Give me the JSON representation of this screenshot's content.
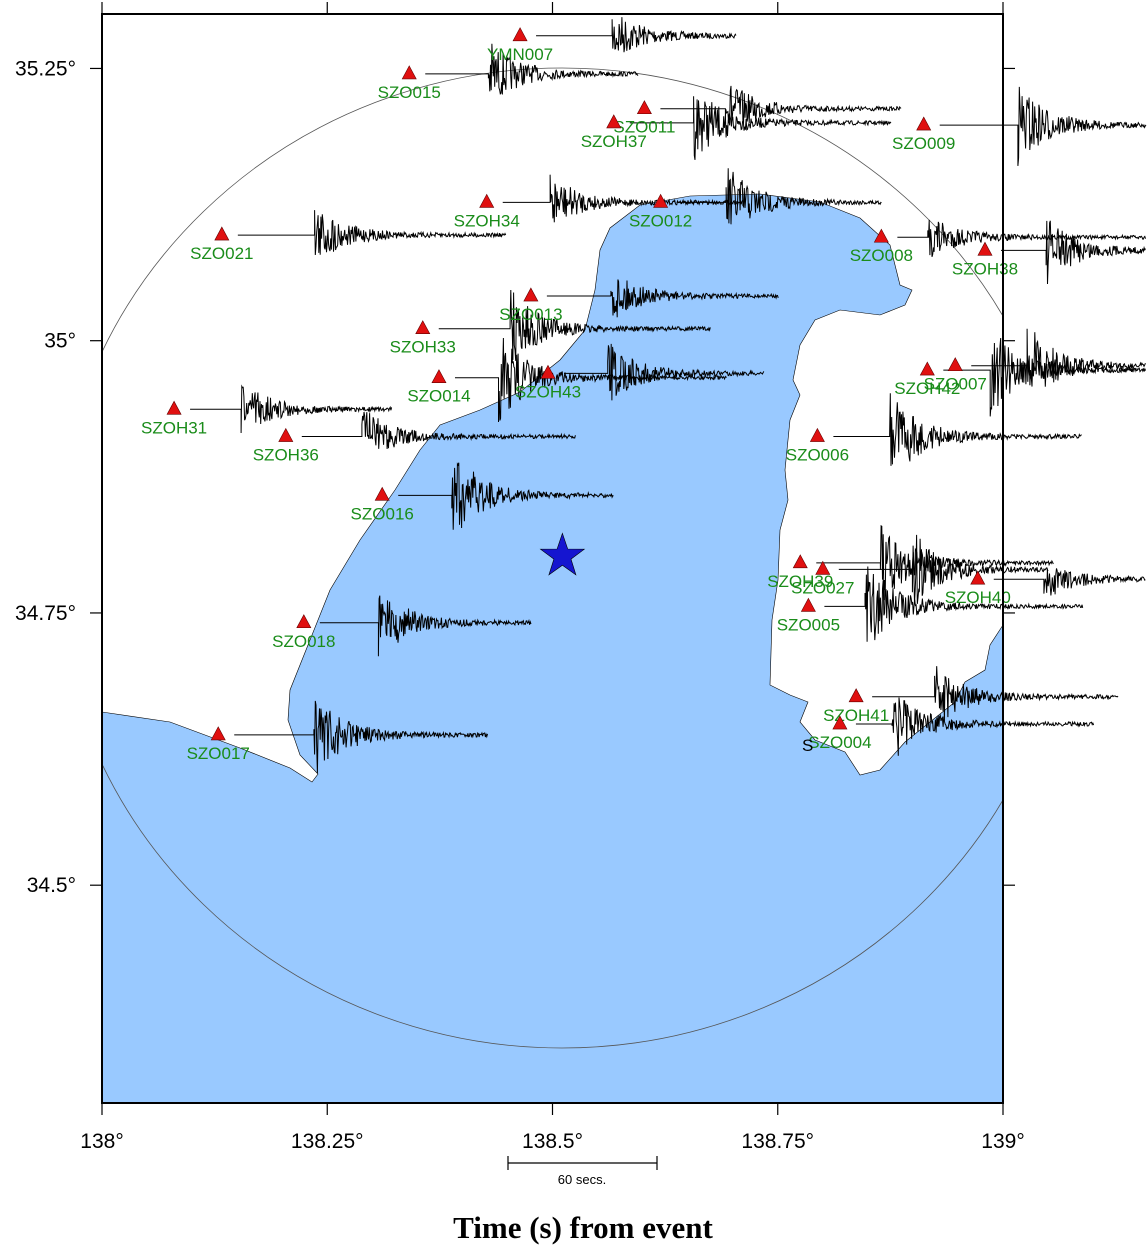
{
  "map": {
    "xlim": [
      138,
      139
    ],
    "ylim": [
      34.3,
      35.3
    ],
    "xticks": [
      {
        "value": 138,
        "label": "138°"
      },
      {
        "value": 138.25,
        "label": "138.25°"
      },
      {
        "value": 138.5,
        "label": "138.5°"
      },
      {
        "value": 138.75,
        "label": "138.75°"
      },
      {
        "value": 139,
        "label": "139°"
      }
    ],
    "yticks": [
      {
        "value": 34.5,
        "label": "34.5°"
      },
      {
        "value": 34.75,
        "label": "34.75°"
      },
      {
        "value": 35,
        "label": "35°"
      },
      {
        "value": 35.25,
        "label": "35.25°"
      }
    ],
    "epicenter": {
      "lon": 138.511,
      "lat": 34.802
    },
    "stations": [
      {
        "name": "YMN007",
        "lon": 138.464,
        "lat": 35.28
      },
      {
        "name": "SZO015",
        "lon": 138.341,
        "lat": 35.245
      },
      {
        "name": "SZO011",
        "lon": 138.602,
        "lat": 35.213
      },
      {
        "name": "SZOH37",
        "lon": 138.568,
        "lat": 35.2
      },
      {
        "name": "SZO009",
        "lon": 138.912,
        "lat": 35.198
      },
      {
        "name": "SZOH34",
        "lon": 138.427,
        "lat": 35.127
      },
      {
        "name": "SZO012",
        "lon": 138.62,
        "lat": 35.127
      },
      {
        "name": "SZO021",
        "lon": 138.133,
        "lat": 35.097
      },
      {
        "name": "SZO008",
        "lon": 138.865,
        "lat": 35.095
      },
      {
        "name": "SZOH38",
        "lon": 138.98,
        "lat": 35.083
      },
      {
        "name": "SZO013",
        "lon": 138.476,
        "lat": 35.041
      },
      {
        "name": "SZOH33",
        "lon": 138.356,
        "lat": 35.011
      },
      {
        "name": "SZO014",
        "lon": 138.374,
        "lat": 34.966
      },
      {
        "name": "SZOH43",
        "lon": 138.495,
        "lat": 34.97
      },
      {
        "name": "SZOH42",
        "lon": 138.916,
        "lat": 34.973
      },
      {
        "name": "SZO007",
        "lon": 138.947,
        "lat": 34.977
      },
      {
        "name": "SZOH31",
        "lon": 138.08,
        "lat": 34.937
      },
      {
        "name": "SZOH36",
        "lon": 138.204,
        "lat": 34.912
      },
      {
        "name": "SZO006",
        "lon": 138.794,
        "lat": 34.912
      },
      {
        "name": "SZO016",
        "lon": 138.311,
        "lat": 34.858
      },
      {
        "name": "SZOH39",
        "lon": 138.775,
        "lat": 34.796
      },
      {
        "name": "SZO027",
        "lon": 138.8,
        "lat": 34.79
      },
      {
        "name": "SZOH40",
        "lon": 138.972,
        "lat": 34.781
      },
      {
        "name": "SZO005",
        "lon": 138.784,
        "lat": 34.756
      },
      {
        "name": "SZO018",
        "lon": 138.224,
        "lat": 34.741
      },
      {
        "name": "SZOH41",
        "lon": 138.837,
        "lat": 34.673
      },
      {
        "name": "SZO004",
        "lon": 138.819,
        "lat": 34.648
      },
      {
        "name": "SZO017",
        "lon": 138.129,
        "lat": 34.638
      }
    ],
    "annotation": "S",
    "scale_label": "60 secs.",
    "xlabel": "Time (s) from event"
  }
}
